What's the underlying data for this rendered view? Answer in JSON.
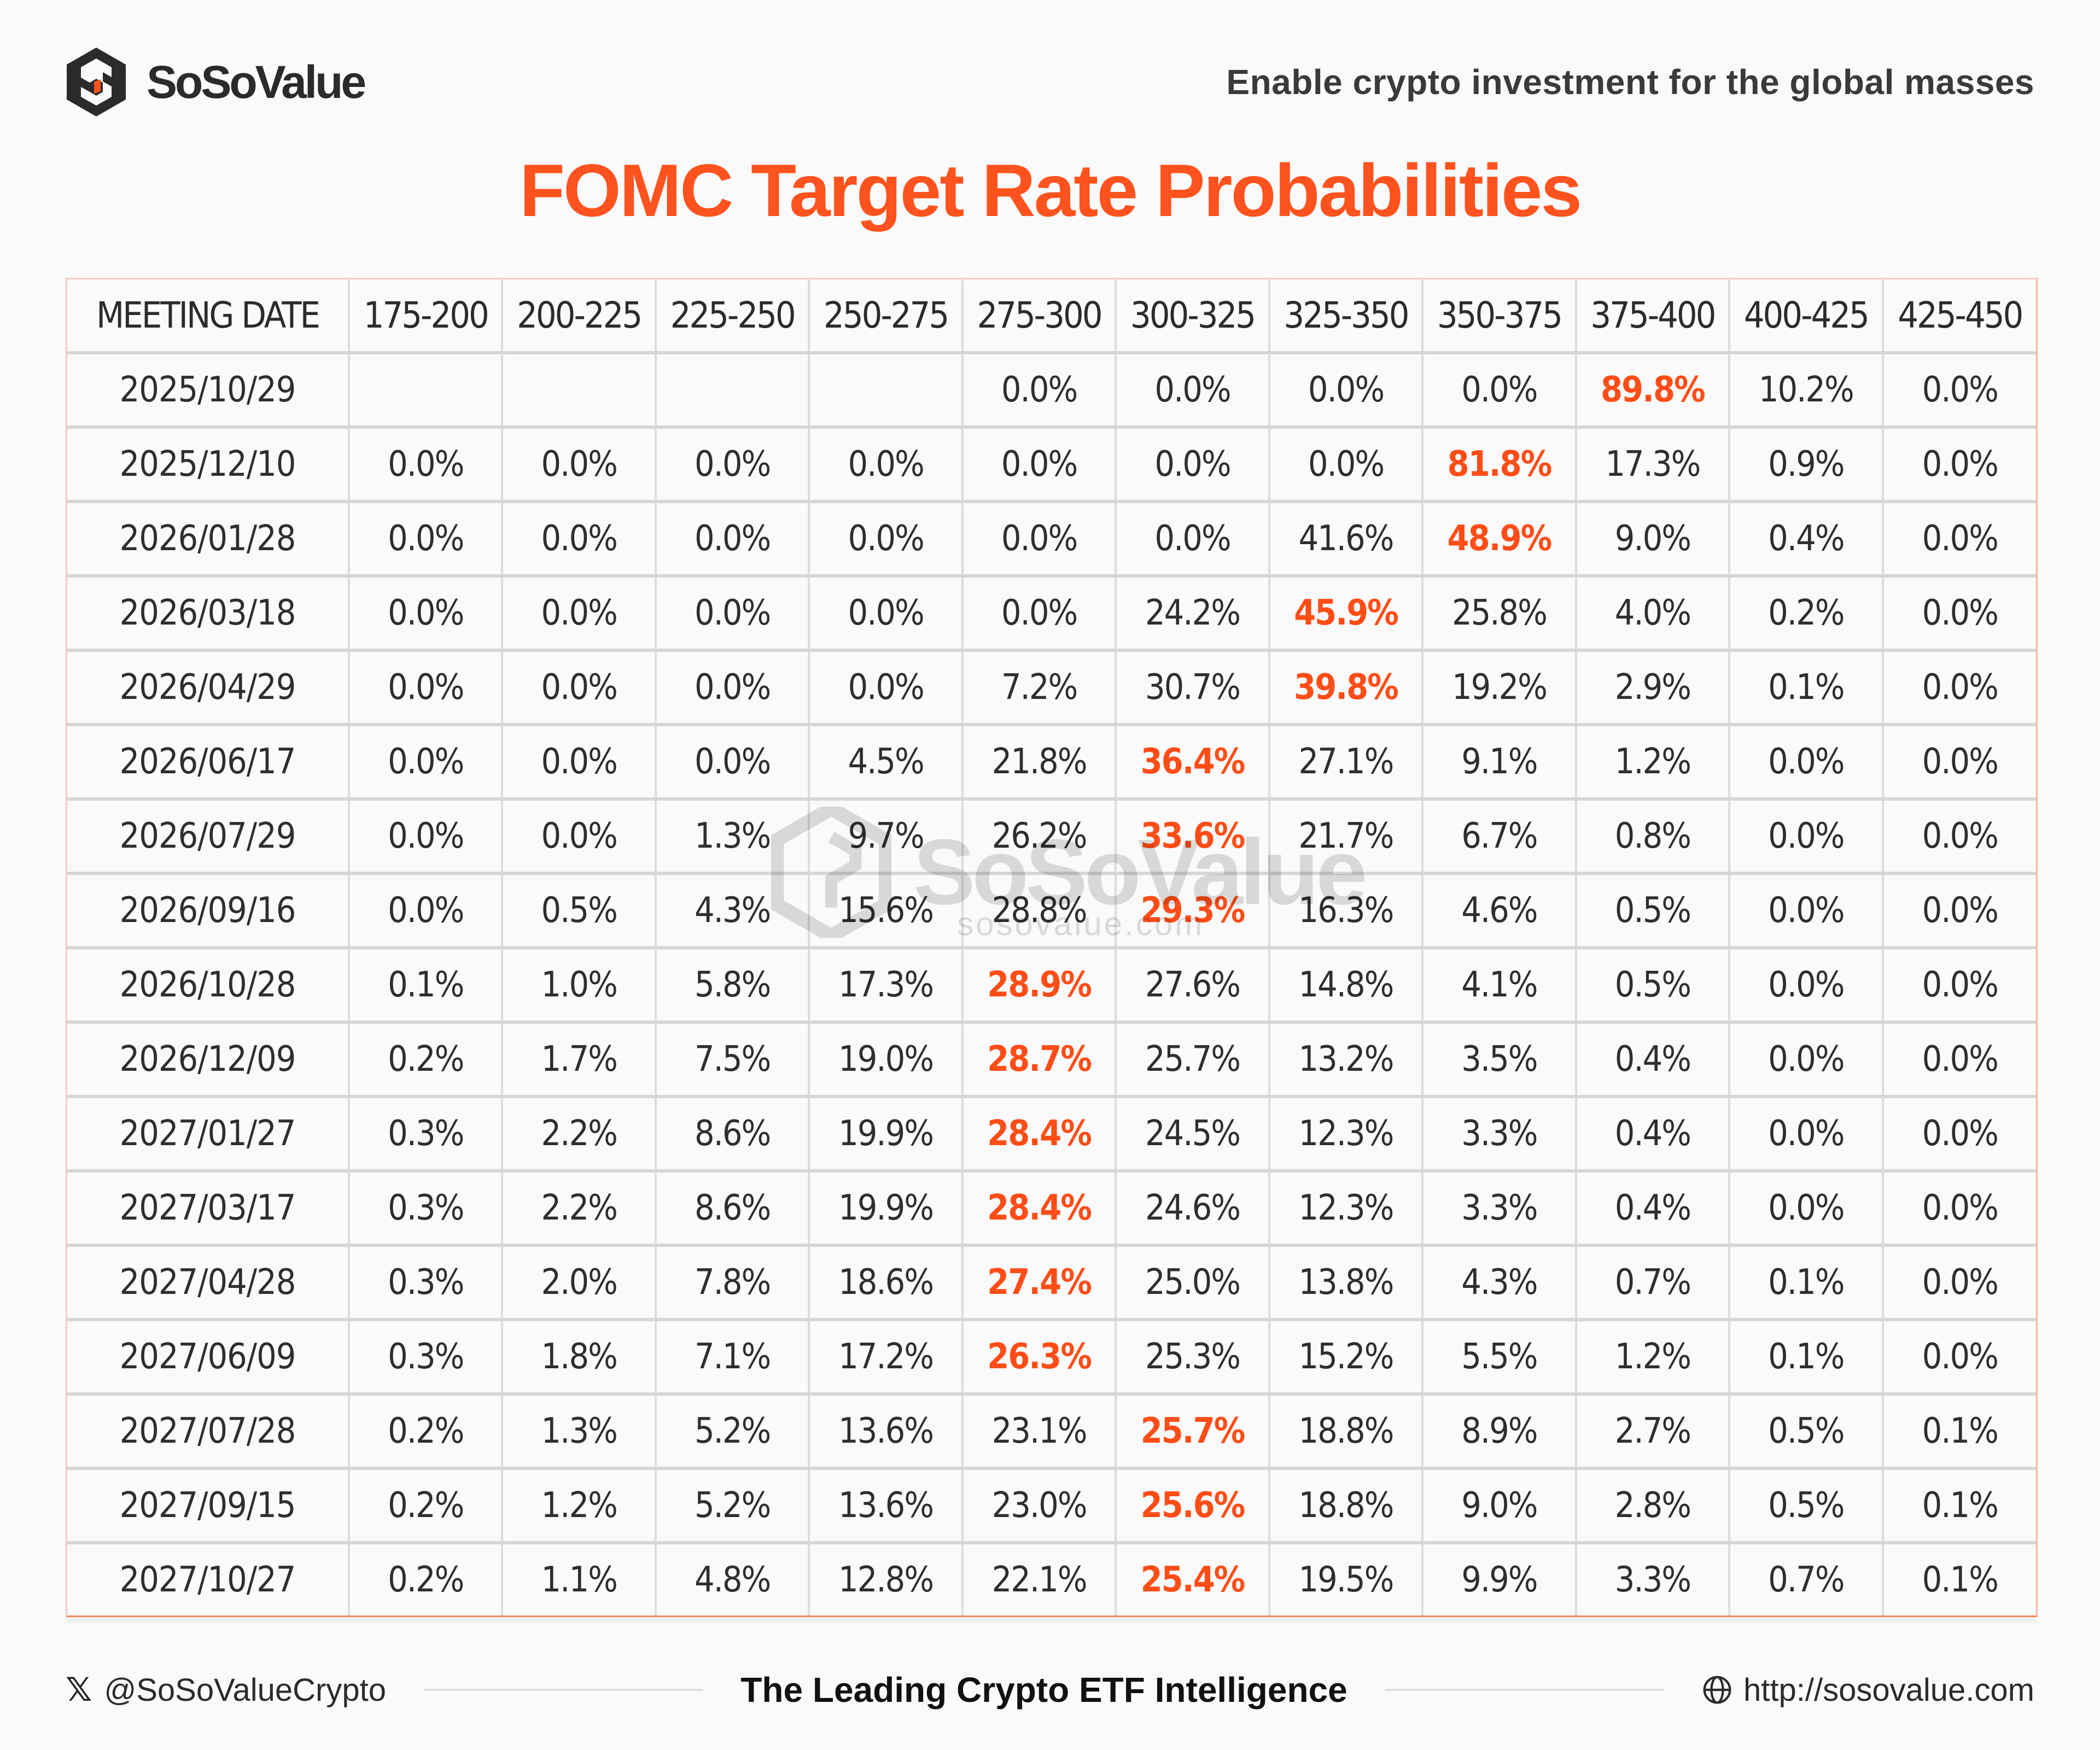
{
  "brand": {
    "name": "SoSoValue",
    "tagline": "Enable crypto investment for the global masses",
    "accent_color": "#ff531f"
  },
  "title": "FOMC Target Rate Probabilities",
  "watermark": {
    "text": "SoSoValue",
    "sub": "sosovalue.com"
  },
  "table": {
    "columns": [
      "MEETING DATE",
      "175-200",
      "200-225",
      "225-250",
      "250-275",
      "275-300",
      "300-325",
      "325-350",
      "350-375",
      "375-400",
      "400-425",
      "425-450"
    ],
    "highlight_color": "#ff4d17",
    "rows": [
      {
        "date": "2025/10/29",
        "values": [
          "",
          "",
          "",
          "",
          "0.0%",
          "0.0%",
          "0.0%",
          "0.0%",
          "89.8%",
          "10.2%",
          "0.0%"
        ],
        "highlight": 8
      },
      {
        "date": "2025/12/10",
        "values": [
          "0.0%",
          "0.0%",
          "0.0%",
          "0.0%",
          "0.0%",
          "0.0%",
          "0.0%",
          "81.8%",
          "17.3%",
          "0.9%",
          "0.0%"
        ],
        "highlight": 7
      },
      {
        "date": "2026/01/28",
        "values": [
          "0.0%",
          "0.0%",
          "0.0%",
          "0.0%",
          "0.0%",
          "0.0%",
          "41.6%",
          "48.9%",
          "9.0%",
          "0.4%",
          "0.0%"
        ],
        "highlight": 7
      },
      {
        "date": "2026/03/18",
        "values": [
          "0.0%",
          "0.0%",
          "0.0%",
          "0.0%",
          "0.0%",
          "24.2%",
          "45.9%",
          "25.8%",
          "4.0%",
          "0.2%",
          "0.0%"
        ],
        "highlight": 6
      },
      {
        "date": "2026/04/29",
        "values": [
          "0.0%",
          "0.0%",
          "0.0%",
          "0.0%",
          "7.2%",
          "30.7%",
          "39.8%",
          "19.2%",
          "2.9%",
          "0.1%",
          "0.0%"
        ],
        "highlight": 6
      },
      {
        "date": "2026/06/17",
        "values": [
          "0.0%",
          "0.0%",
          "0.0%",
          "4.5%",
          "21.8%",
          "36.4%",
          "27.1%",
          "9.1%",
          "1.2%",
          "0.0%",
          "0.0%"
        ],
        "highlight": 5
      },
      {
        "date": "2026/07/29",
        "values": [
          "0.0%",
          "0.0%",
          "1.3%",
          "9.7%",
          "26.2%",
          "33.6%",
          "21.7%",
          "6.7%",
          "0.8%",
          "0.0%",
          "0.0%"
        ],
        "highlight": 5
      },
      {
        "date": "2026/09/16",
        "values": [
          "0.0%",
          "0.5%",
          "4.3%",
          "15.6%",
          "28.8%",
          "29.3%",
          "16.3%",
          "4.6%",
          "0.5%",
          "0.0%",
          "0.0%"
        ],
        "highlight": 5
      },
      {
        "date": "2026/10/28",
        "values": [
          "0.1%",
          "1.0%",
          "5.8%",
          "17.3%",
          "28.9%",
          "27.6%",
          "14.8%",
          "4.1%",
          "0.5%",
          "0.0%",
          "0.0%"
        ],
        "highlight": 4
      },
      {
        "date": "2026/12/09",
        "values": [
          "0.2%",
          "1.7%",
          "7.5%",
          "19.0%",
          "28.7%",
          "25.7%",
          "13.2%",
          "3.5%",
          "0.4%",
          "0.0%",
          "0.0%"
        ],
        "highlight": 4
      },
      {
        "date": "2027/01/27",
        "values": [
          "0.3%",
          "2.2%",
          "8.6%",
          "19.9%",
          "28.4%",
          "24.5%",
          "12.3%",
          "3.3%",
          "0.4%",
          "0.0%",
          "0.0%"
        ],
        "highlight": 4
      },
      {
        "date": "2027/03/17",
        "values": [
          "0.3%",
          "2.2%",
          "8.6%",
          "19.9%",
          "28.4%",
          "24.6%",
          "12.3%",
          "3.3%",
          "0.4%",
          "0.0%",
          "0.0%"
        ],
        "highlight": 4
      },
      {
        "date": "2027/04/28",
        "values": [
          "0.3%",
          "2.0%",
          "7.8%",
          "18.6%",
          "27.4%",
          "25.0%",
          "13.8%",
          "4.3%",
          "0.7%",
          "0.1%",
          "0.0%"
        ],
        "highlight": 4
      },
      {
        "date": "2027/06/09",
        "values": [
          "0.3%",
          "1.8%",
          "7.1%",
          "17.2%",
          "26.3%",
          "25.3%",
          "15.2%",
          "5.5%",
          "1.2%",
          "0.1%",
          "0.0%"
        ],
        "highlight": 4
      },
      {
        "date": "2027/07/28",
        "values": [
          "0.2%",
          "1.3%",
          "5.2%",
          "13.6%",
          "23.1%",
          "25.7%",
          "18.8%",
          "8.9%",
          "2.7%",
          "0.5%",
          "0.1%"
        ],
        "highlight": 5
      },
      {
        "date": "2027/09/15",
        "values": [
          "0.2%",
          "1.2%",
          "5.2%",
          "13.6%",
          "23.0%",
          "25.6%",
          "18.8%",
          "9.0%",
          "2.8%",
          "0.5%",
          "0.1%"
        ],
        "highlight": 5
      },
      {
        "date": "2027/10/27",
        "values": [
          "0.2%",
          "1.1%",
          "4.8%",
          "12.8%",
          "22.1%",
          "25.4%",
          "19.5%",
          "9.9%",
          "3.3%",
          "0.7%",
          "0.1%"
        ],
        "highlight": 5
      }
    ]
  },
  "footer": {
    "social_icon": "x-logo-icon",
    "social_handle": "@SoSoValueCrypto",
    "center_text": "The Leading Crypto ETF Intelligence",
    "website_icon": "globe-icon",
    "website": "http://sosovalue.com"
  }
}
